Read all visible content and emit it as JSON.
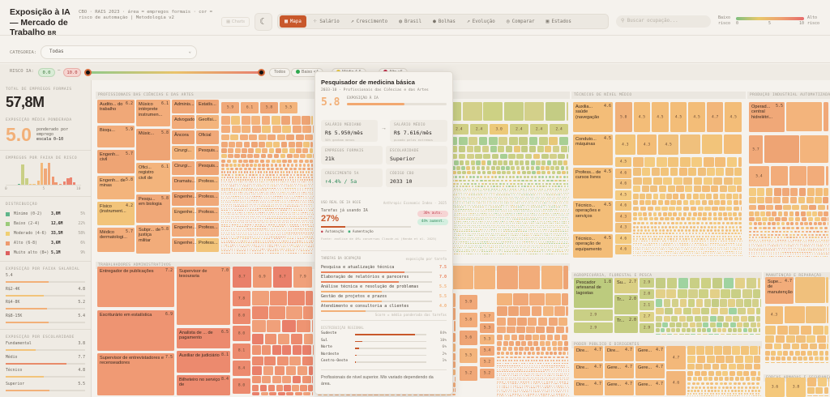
{
  "header": {
    "title": "Exposição à IA — Mercado de Trabalho",
    "title_suffix": "BR",
    "subtitle": "CBO · RAIS 2023 · área = empregos formais · cor = risco de automação | Metodologia v2",
    "charts_label": "Charts",
    "theme_icon": "moon-icon",
    "tabs": [
      {
        "label": "Mapa",
        "icon": "grid-icon",
        "active": true
      },
      {
        "label": "Salário",
        "icon": "scatter-icon"
      },
      {
        "label": "Crescimento",
        "icon": "trend-icon"
      },
      {
        "label": "Brasil",
        "icon": "globe-icon"
      },
      {
        "label": "Bolhas",
        "icon": "bubbles-icon"
      },
      {
        "label": "Evolução",
        "icon": "trend-icon"
      },
      {
        "label": "Comparar",
        "icon": "target-icon"
      },
      {
        "label": "Estados",
        "icon": "grid4-icon"
      }
    ],
    "search_placeholder": "Buscar ocupação...",
    "legend": {
      "low": "Baixo",
      "low2": "risco",
      "high": "Alto",
      "high2": "risco",
      "t0": "0",
      "t5": "5",
      "t10": "10"
    }
  },
  "filters": {
    "category_label": "CATEGORIA:",
    "category_value": "Todas",
    "risk_label": "RISCO IA:",
    "risk_min": "0.0",
    "risk_max": "10.0",
    "chips": [
      "Todos",
      "Baixo <4",
      "Médio 4-6",
      "Alto >6"
    ]
  },
  "sidebar": {
    "total_label": "TOTAL DE EMPREGOS FORMAIS",
    "total": "57,8M",
    "avg_label": "EXPOSIÇÃO MÉDIA PONDERADA",
    "avg": "5.0",
    "avg_note1": "ponderado por",
    "avg_note2": "emprego",
    "avg_note3": "escala 0–10",
    "hist_label": "EMPREGOS POR FAIXA DE RISCO",
    "hist_ticks": [
      "0",
      "5",
      "10"
    ],
    "hist": [
      {
        "score": 1.8,
        "millions": 0.4
      },
      {
        "score": 2.3,
        "millions": 10.0
      },
      {
        "score": 2.8,
        "millions": 3.2
      },
      {
        "score": 3.3,
        "millions": 0.4
      },
      {
        "score": 3.8,
        "millions": 0.4
      },
      {
        "score": 4.4,
        "millions": 2.0
      },
      {
        "score": 4.8,
        "millions": 10.8
      },
      {
        "score": 5.3,
        "millions": 8.0
      },
      {
        "score": 5.8,
        "millions": 10.8
      },
      {
        "score": 6.3,
        "millions": 4.0
      },
      {
        "score": 6.7,
        "millions": 1.2
      },
      {
        "score": 7.3,
        "millions": 0.4
      },
      {
        "score": 7.8,
        "millions": 1.6
      },
      {
        "score": 8.3,
        "millions": 3.2
      },
      {
        "score": 8.7,
        "millions": 3.6
      },
      {
        "score": 9.1,
        "millions": 1.2
      }
    ],
    "dist_label": "DISTRIBUIÇÃO",
    "dist": [
      {
        "label": "Mínimo (0-2)",
        "value": "3,0M",
        "pct": "5%",
        "color": "#5fb58a"
      },
      {
        "label": "Baixo (2-4)",
        "value": "12,6M",
        "pct": "22%",
        "color": "#9ccb7a"
      },
      {
        "label": "Moderado (4-6)",
        "value": "33,5M",
        "pct": "58%",
        "color": "#f0cf72"
      },
      {
        "label": "Alto (6-8)",
        "value": "3,6M",
        "pct": "6%",
        "color": "#ee9a6e"
      },
      {
        "label": "Muito alto (8+)",
        "value": "5,1M",
        "pct": "9%",
        "color": "#dd5f5f"
      }
    ],
    "salary_label": "EXPOSIÇÃO POR FAIXA SALARIAL",
    "salary": [
      {
        "label": "5.4",
        "value": "",
        "score": 5.4
      },
      {
        "label": "R$2-4K",
        "value": "4.8",
        "score": 4.8
      },
      {
        "label": "R$4-8K",
        "value": "5.2",
        "score": 5.2
      },
      {
        "label": "R$8-15K",
        "value": "5.4",
        "score": 5.4
      }
    ],
    "edu_label": "EXPOSIÇÃO POR ESCOLARIDADE",
    "edu": [
      {
        "label": "Fundamental",
        "value": "3.8",
        "score": 3.8
      },
      {
        "label": "Médio",
        "value": "7.7",
        "score": 7.7
      },
      {
        "label": "Técnico",
        "value": "4.8",
        "score": 4.8
      },
      {
        "label": "Superior",
        "value": "5.5",
        "score": 5.5
      }
    ]
  },
  "treemap": {
    "colors": {
      "green": "#c9cf85",
      "yellow": "#f2c47a",
      "orange": "#f0a878",
      "red": "#ec8a6e"
    },
    "sections": {
      "ciencias": {
        "title": "PROFISSIONAIS DAS CIÊNCIAS E DAS ARTES",
        "tiles": [
          {
            "label": "Audito... do trabalho",
            "score": "6.2"
          },
          {
            "label": "Bioqu...",
            "score": "5.9"
          },
          {
            "label": "Engenh... civil",
            "score": "5.7"
          },
          {
            "label": "Engenh... de minas",
            "score": "5.8"
          },
          {
            "label": "Físico (instrument...",
            "score": "4.2"
          },
          {
            "label": "Médico dermatologi...",
            "score": "5.7"
          },
          {
            "label": "Músico intérprete instrumen...",
            "score": "6.1"
          },
          {
            "label": "Músic...",
            "score": "5.8"
          },
          {
            "label": "Ofici... registro civil de",
            "score": "6.1"
          },
          {
            "label": "Pesqu... em biologia",
            "score": "5.8"
          },
          {
            "label": "Subpr... de justiça militar",
            "score": "5.8"
          },
          {
            "label": "Adminis..."
          },
          {
            "label": "Advogado"
          },
          {
            "label": "Âncora"
          },
          {
            "label": "Cirurgi..."
          },
          {
            "label": "Cirurgi..."
          },
          {
            "label": "Dramatu..."
          },
          {
            "label": "Engenhe..."
          },
          {
            "label": "Engenhe..."
          },
          {
            "label": "Engenhe..."
          },
          {
            "label": "Engenhe..."
          },
          {
            "label": "Estatís..."
          },
          {
            "label": "Geofísi..."
          },
          {
            "label": "Oficial"
          },
          {
            "label": "Pesquis..."
          },
          {
            "label": "Pesquis..."
          },
          {
            "label": "Profess..."
          },
          {
            "label": "Profess..."
          },
          {
            "label": "Profess..."
          },
          {
            "label": "Profess..."
          },
          {
            "label": "Profess..."
          }
        ],
        "values": [
          "5.9",
          "6.1",
          "5.8",
          "5.5"
        ]
      },
      "verde": {
        "title": "",
        "values": [
          "2.4",
          "2.4",
          "3.0",
          "2.4",
          "2.4",
          "2.4"
        ]
      },
      "admin": {
        "title": "TRABALHADORES ADMINISTRATIVOS",
        "tiles": [
          {
            "label": "Entregador de publicações",
            "score": "7.2"
          },
          {
            "label": "Escriturário em estatística",
            "score": "6.9"
          },
          {
            "label": "Supervisor de entrevistadores e recenseadores",
            "score": "7.5"
          },
          {
            "label": "Supervisor de tesouraria",
            "score": "7.0"
          },
          {
            "label": "Analista de ... de pagamento",
            "score": "6.5"
          },
          {
            "label": "Auxiliar de judiciário",
            "score": "8.1"
          },
          {
            "label": "Bilheteiro no serviço de",
            "score": "8.4"
          }
        ],
        "values": [
          "8.7",
          "6.9",
          "8.7",
          "7.9",
          "7.8",
          "8.0",
          "8.0",
          "8.1",
          "8.4",
          "8.0",
          "8.3",
          "7.9",
          "7.8",
          "7.8",
          "7.8",
          "7.8",
          "7.8"
        ]
      },
      "laranja": {
        "title": "",
        "values": [
          "5.9",
          "5.8",
          "5.6",
          "5.5",
          "5.2",
          "5.7",
          "5.3",
          "5.3",
          "5.4",
          "5.2",
          "5.2"
        ]
      },
      "tecnicos": {
        "title": "TÉCNICOS DE NÍVEL MÉDIO",
        "tiles": [
          {
            "label": "Auxilia... saúde (navegação",
            "score": "4.6"
          },
          {
            "label": "Conduto... máquinas",
            "score": "4.5"
          },
          {
            "label": "Profess... de cursos livres",
            "score": "4.5"
          },
          {
            "label": "Técnico... operações e serviços",
            "score": "4.5"
          },
          {
            "label": "Técnico... operação de equipamento",
            "score": "4.5"
          }
        ],
        "values": [
          "5.0",
          "4.5",
          "4.5",
          "4.5",
          "4.5",
          "4.7",
          "4.5",
          "4.3",
          "4.3",
          "4.5",
          "4.5",
          "4.6",
          "4.6",
          "4.5",
          "4.6",
          "4.3",
          "4.3",
          "4.6",
          "4.6"
        ]
      },
      "producao": {
        "title": "PRODUÇÃO INDUSTRIAL AUTOMATIZADA",
        "tiles": [
          {
            "label": "Operad... central hidrelétri...",
            "score": "5.5"
          }
        ],
        "values": [
          "5.7",
          "5.4"
        ]
      },
      "agro": {
        "title": "AGROPECUÁRIA, FLORESTAL E PESCA",
        "tiles": [
          {
            "label": "Pescador artesanal de lagostas",
            "score": "1.8"
          },
          {
            "label": "Su...",
            "score": "2.7"
          },
          {
            "label": "Tr...",
            "score": "2.0"
          },
          {
            "label": "Tr...",
            "score": "2.0"
          }
        ],
        "values": [
          "2.9",
          "2.9",
          "2.9",
          "2.0",
          "2.1",
          "2.7",
          "2.9"
        ]
      },
      "reparacao": {
        "title": "MANUTENÇÃO E REPARAÇÃO",
        "tiles": [
          {
            "label": "Supe... de manutenção",
            "score": "4.7"
          }
        ],
        "values": [
          "4.3"
        ]
      },
      "poder": {
        "title": "PODER PÚBLICO E DIRIGENTES",
        "tiles": [
          {
            "label": "Dire...",
            "score": "4.7"
          },
          {
            "label": "Dire...",
            "score": "4.7"
          },
          {
            "label": "Gere...",
            "score": "4.7"
          },
          {
            "label": "Dire...",
            "score": "4.7"
          },
          {
            "label": "Gere...",
            "score": "4.7"
          },
          {
            "label": "Gere...",
            "score": "4.7"
          },
          {
            "label": "Dire...",
            "score": "4.7"
          },
          {
            "label": "Gere...",
            "score": "4.7"
          },
          {
            "label": "Gere...",
            "score": "4.7"
          }
        ],
        "values": [
          "4.7",
          "4.6"
        ]
      },
      "forcas": {
        "title": "FORÇAS ARMADAS E SEGURANÇA",
        "values": [
          "3.6",
          "3.8"
        ]
      }
    }
  },
  "tooltip": {
    "title": "Pesquisador de medicina básica",
    "subtitle": "2033-10 · Profissionais das Ciências e das Artes",
    "score": "5.8",
    "score_fraction": 0.58,
    "score_label": "EXPOSIÇÃO À IA",
    "salary_median_label": "SALÁRIO MEDIANO",
    "salary_median": "R$ 5.950/mês",
    "salary_median_note": "50% ganham menos",
    "arrow": "→",
    "salary_mean_label": "SALÁRIO MÉDIO",
    "salary_mean": "R$ 7.616/mês",
    "salary_mean_note": "puxado pelos extremos",
    "jobs_label": "EMPREGOS FORMAIS",
    "jobs": "21k",
    "edu_label": "ESCOLARIDADE",
    "edu": "Superior",
    "growth_label": "CRESCIMENTO 5A",
    "growth": "↑4.4% / 5a",
    "cbo_label": "CÓDIGO CBO",
    "cbo": "2033 10",
    "usage_label": "USO REAL DE IA HOJE",
    "usage_source": "Anthropic Economic Index · 2025",
    "usage_text": "Tarefas já usando IA",
    "usage_pct": "27%",
    "usage_fraction": 0.27,
    "badge_auto": "36% auto.",
    "badge_aug": "44% aument.",
    "legend_auto": "Automação",
    "legend_aug": "Aumentação",
    "usage_note": "Fonte: análise de 4M+ conversas Claude.ai (Handa et al. 2025)",
    "tasks_label": "TAREFAS DA OCUPAÇÃO",
    "tasks_note": "exposição por tarefa",
    "tasks": [
      {
        "label": "Pesquisa e atualização técnica",
        "score": "7.5"
      },
      {
        "label": "Elaboração de relatórios e pareceres",
        "score": "7.0"
      },
      {
        "label": "Análise técnica e resolução de problemas",
        "score": "5.5"
      },
      {
        "label": "Gestão de projetos e prazos",
        "score": "5.5"
      },
      {
        "label": "Atendimento e consultoria a clientes",
        "score": "4.0"
      }
    ],
    "tasks_footer": "Score = média ponderada das tarefas",
    "regional_label": "DISTRIBUIÇÃO REGIONAL",
    "regional": [
      {
        "label": "Sudeste",
        "pct": "84%",
        "value": 84
      },
      {
        "label": "Sul",
        "pct": "10%",
        "value": 10
      },
      {
        "label": "Norte",
        "pct": "6%",
        "value": 6
      },
      {
        "label": "Nordeste",
        "pct": "2%",
        "value": 2
      },
      {
        "label": "Centro-Oeste",
        "pct": "1%",
        "value": 1
      }
    ],
    "description": "Profissionais de nível superior. Mix variado dependendo da área."
  }
}
